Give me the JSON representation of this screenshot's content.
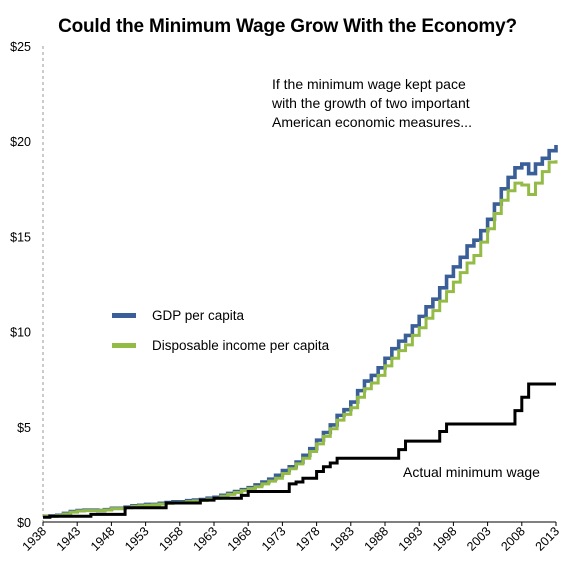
{
  "chart_data": {
    "type": "line",
    "title": "Could the Minimum Wage Grow With the Economy?",
    "annotation": [
      "If the minimum wage kept pace",
      "with the growth of two important",
      "American economic measures..."
    ],
    "xlabel": "",
    "ylabel": "",
    "xlim": [
      1938,
      2013
    ],
    "ylim": [
      0,
      25
    ],
    "x_ticks": [
      1938,
      1943,
      1948,
      1953,
      1958,
      1963,
      1968,
      1973,
      1978,
      1983,
      1988,
      1993,
      1998,
      2003,
      2008,
      2013
    ],
    "y_ticks": [
      0,
      5,
      10,
      15,
      20,
      25
    ],
    "y_tick_labels": [
      "$0",
      "$5",
      "$10",
      "$15",
      "$20",
      "$25"
    ],
    "step": true,
    "grid": false,
    "legend_position": "middle-left",
    "series": [
      {
        "name": "GDP per capita",
        "color": "#3a5f98",
        "x": [
          1938,
          1939,
          1940,
          1941,
          1942,
          1943,
          1944,
          1945,
          1946,
          1947,
          1948,
          1949,
          1950,
          1951,
          1952,
          1953,
          1954,
          1955,
          1956,
          1957,
          1958,
          1959,
          1960,
          1961,
          1962,
          1963,
          1964,
          1965,
          1966,
          1967,
          1968,
          1969,
          1970,
          1971,
          1972,
          1973,
          1974,
          1975,
          1976,
          1977,
          1978,
          1979,
          1980,
          1981,
          1982,
          1983,
          1984,
          1985,
          1986,
          1987,
          1988,
          1989,
          1990,
          1991,
          1992,
          1993,
          1994,
          1995,
          1996,
          1997,
          1998,
          1999,
          2000,
          2001,
          2002,
          2003,
          2004,
          2005,
          2006,
          2007,
          2008,
          2009,
          2010,
          2011,
          2012,
          2013
        ],
        "values": [
          0.3,
          0.32,
          0.35,
          0.45,
          0.55,
          0.6,
          0.62,
          0.62,
          0.6,
          0.65,
          0.72,
          0.72,
          0.78,
          0.85,
          0.88,
          0.92,
          0.92,
          0.98,
          1.02,
          1.06,
          1.06,
          1.12,
          1.15,
          1.18,
          1.25,
          1.3,
          1.4,
          1.5,
          1.6,
          1.7,
          1.8,
          1.95,
          2.1,
          2.25,
          2.45,
          2.7,
          2.9,
          3.15,
          3.5,
          3.85,
          4.3,
          4.7,
          5.1,
          5.6,
          5.9,
          6.3,
          6.9,
          7.4,
          7.7,
          8.1,
          8.6,
          9.1,
          9.5,
          9.8,
          10.3,
          10.8,
          11.3,
          11.7,
          12.3,
          12.9,
          13.4,
          13.9,
          14.5,
          14.8,
          15.3,
          15.9,
          16.7,
          17.5,
          18.1,
          18.6,
          18.8,
          18.3,
          18.8,
          19.1,
          19.5,
          19.8
        ]
      },
      {
        "name": "Disposable income per capita",
        "color": "#95bb47",
        "x": [
          1938,
          1939,
          1940,
          1941,
          1942,
          1943,
          1944,
          1945,
          1946,
          1947,
          1948,
          1949,
          1950,
          1951,
          1952,
          1953,
          1954,
          1955,
          1956,
          1957,
          1958,
          1959,
          1960,
          1961,
          1962,
          1963,
          1964,
          1965,
          1966,
          1967,
          1968,
          1969,
          1970,
          1971,
          1972,
          1973,
          1974,
          1975,
          1976,
          1977,
          1978,
          1979,
          1980,
          1981,
          1982,
          1983,
          1984,
          1985,
          1986,
          1987,
          1988,
          1989,
          1990,
          1991,
          1992,
          1993,
          1994,
          1995,
          1996,
          1997,
          1998,
          1999,
          2000,
          2001,
          2002,
          2003,
          2004,
          2005,
          2006,
          2007,
          2008,
          2009,
          2010,
          2011,
          2012,
          2013
        ],
        "values": [
          0.3,
          0.31,
          0.34,
          0.42,
          0.52,
          0.58,
          0.6,
          0.6,
          0.6,
          0.63,
          0.7,
          0.7,
          0.75,
          0.82,
          0.85,
          0.88,
          0.9,
          0.94,
          0.98,
          1.01,
          1.02,
          1.07,
          1.1,
          1.13,
          1.2,
          1.25,
          1.35,
          1.45,
          1.55,
          1.65,
          1.75,
          1.85,
          2.0,
          2.15,
          2.3,
          2.55,
          2.8,
          3.05,
          3.35,
          3.7,
          4.1,
          4.5,
          4.9,
          5.35,
          5.65,
          6.0,
          6.55,
          7.0,
          7.3,
          7.7,
          8.2,
          8.6,
          9.0,
          9.3,
          9.8,
          10.2,
          10.7,
          11.1,
          11.6,
          12.1,
          12.6,
          13.1,
          13.6,
          14.0,
          14.7,
          15.4,
          16.2,
          16.9,
          17.4,
          17.8,
          17.7,
          17.2,
          17.8,
          18.4,
          18.9,
          19.0
        ]
      },
      {
        "name": "Actual minimum wage",
        "color": "#000000",
        "x": [
          1938,
          1939,
          1945,
          1950,
          1956,
          1961,
          1963,
          1967,
          1968,
          1974,
          1975,
          1976,
          1978,
          1979,
          1980,
          1981,
          1990,
          1991,
          1996,
          1997,
          2007,
          2008,
          2009,
          2013
        ],
        "values": [
          0.25,
          0.3,
          0.4,
          0.75,
          1.0,
          1.15,
          1.25,
          1.4,
          1.6,
          2.0,
          2.1,
          2.3,
          2.65,
          2.9,
          3.1,
          3.35,
          3.8,
          4.25,
          4.75,
          5.15,
          5.85,
          6.55,
          7.25,
          7.25
        ]
      }
    ]
  },
  "legend": {
    "gdp_label": "GDP per capita",
    "income_label": "Disposable income per capita"
  },
  "labels": {
    "minimum_wage": "Actual minimum wage"
  }
}
